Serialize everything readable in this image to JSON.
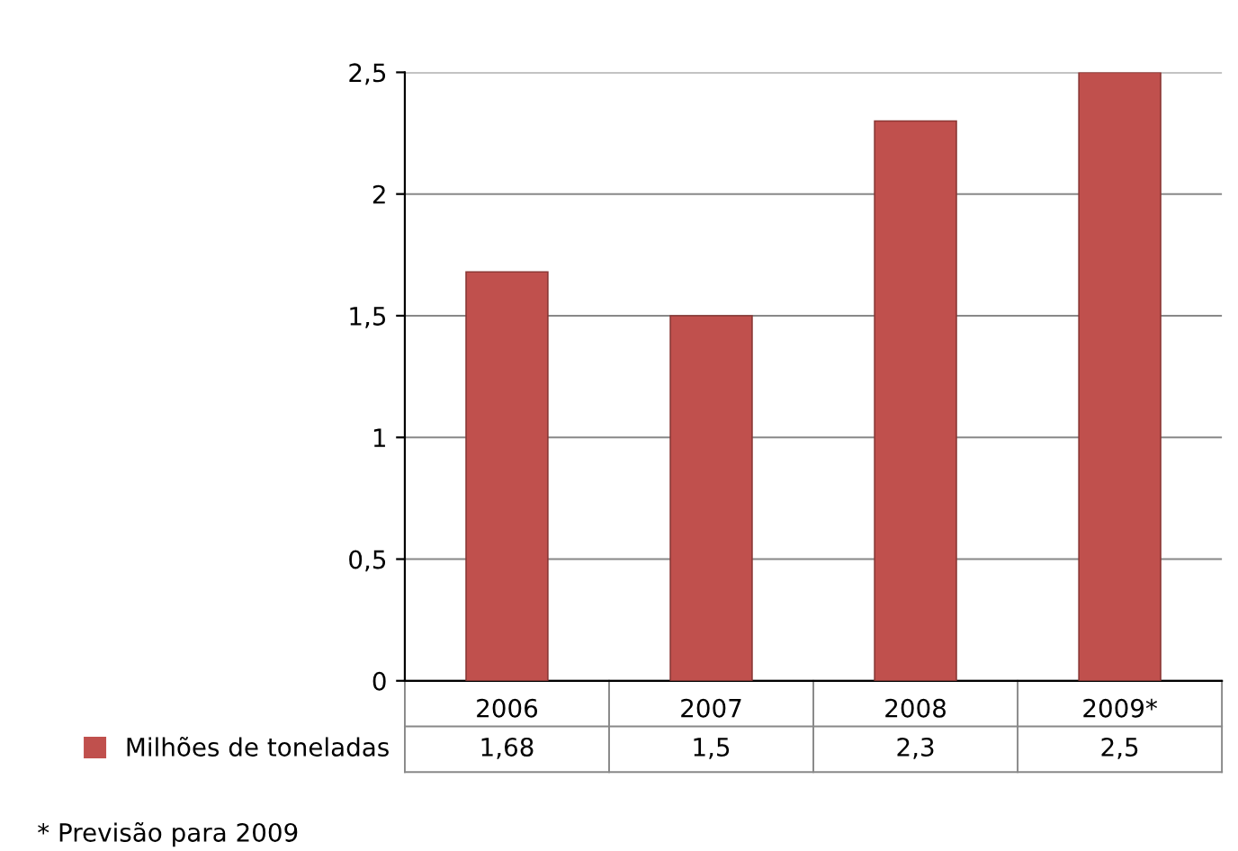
{
  "chart_data": {
    "type": "bar",
    "categories": [
      "2006",
      "2007",
      "2008",
      "2009*"
    ],
    "series": [
      {
        "name": "Milhões de toneladas",
        "color": "#c0504d",
        "values": [
          1.68,
          1.5,
          2.3,
          2.5
        ],
        "value_labels": [
          "1,68",
          "1,5",
          "2,3",
          "2,5"
        ]
      }
    ],
    "ylim": [
      0,
      2.5
    ],
    "yticks": [
      0,
      {
        "value": 0.5,
        "label": "0,5"
      },
      1,
      {
        "value": 1.5,
        "label": "1,5"
      },
      2,
      {
        "value": 2.5,
        "label": "2,5"
      }
    ],
    "grid": "y",
    "legend": "bottom left",
    "annotations": [
      "* Previsão para 2009"
    ]
  }
}
